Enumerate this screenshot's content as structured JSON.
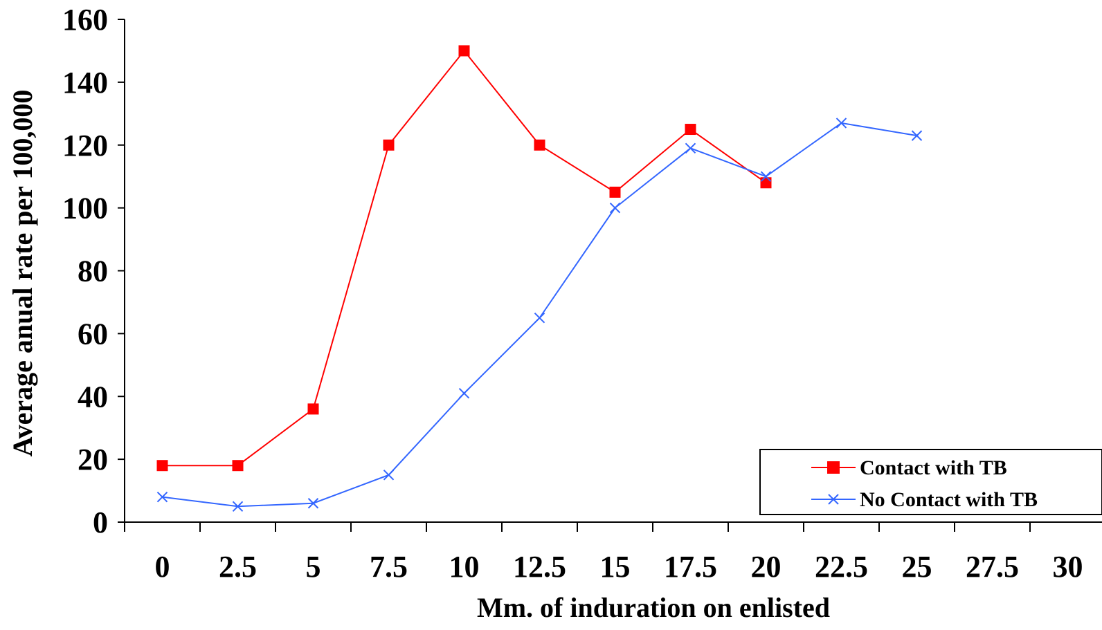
{
  "chart_data": {
    "type": "line",
    "xlabel": "Mm. of induration on enlisted",
    "ylabel": "Average anual rate per 100,000",
    "x_tick_labels": [
      "0",
      "2.5",
      "5",
      "7.5",
      "10",
      "12.5",
      "15",
      "17.5",
      "20",
      "22.5",
      "25",
      "27.5",
      "30"
    ],
    "y_ticks": [
      0,
      20,
      40,
      60,
      80,
      100,
      120,
      140,
      160
    ],
    "ylim": [
      0,
      160
    ],
    "grid": false,
    "legend_position": "bottom-right",
    "series": [
      {
        "name": "Contact with TB",
        "color": "#ff0000",
        "marker": "square",
        "values": [
          18,
          18,
          36,
          120,
          150,
          120,
          105,
          125,
          108
        ]
      },
      {
        "name": "No Contact with TB",
        "color": "#3366ff",
        "marker": "x",
        "values": [
          8,
          5,
          6,
          15,
          41,
          65,
          100,
          119,
          110,
          127,
          123
        ]
      }
    ]
  }
}
